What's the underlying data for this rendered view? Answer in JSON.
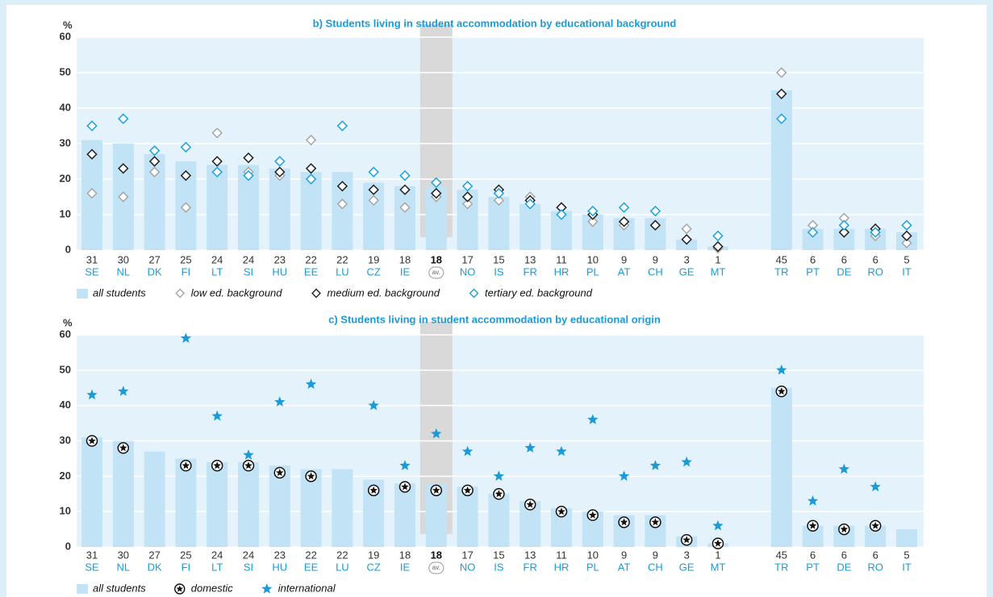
{
  "chart_data": [
    {
      "type": "bar",
      "title": "b) Students living in student accommodation by educational background",
      "y_label": "%",
      "categories": [
        "SE",
        "NL",
        "DK",
        "FI",
        "LT",
        "SI",
        "HU",
        "EE",
        "LU",
        "CZ",
        "IE",
        "av.",
        "NO",
        "IS",
        "FR",
        "HR",
        "PL",
        "AT",
        "CH",
        "GE",
        "MT",
        "TR",
        "PT",
        "DE",
        "RO",
        "IT"
      ],
      "highlight": "av.",
      "ylim": [
        0,
        60
      ],
      "yticks": [
        0,
        10,
        20,
        30,
        40,
        50,
        60
      ],
      "grid": true,
      "series": [
        {
          "name": "all students",
          "color": "#c2e2f5",
          "marker": "bar",
          "values": [
            31,
            30,
            27,
            25,
            24,
            24,
            23,
            22,
            22,
            19,
            18,
            18,
            17,
            15,
            13,
            11,
            10,
            9,
            9,
            3,
            1,
            45,
            6,
            6,
            6,
            5
          ]
        },
        {
          "name": "low ed. background",
          "color": "#a6a6a6",
          "marker": "diamond",
          "values": [
            16,
            15,
            22,
            12,
            33,
            22,
            21,
            31,
            13,
            14,
            12,
            15,
            13,
            14,
            15,
            12,
            8,
            7,
            7,
            6,
            0.5,
            50,
            7,
            9,
            4,
            2
          ]
        },
        {
          "name": "medium ed. background",
          "color": "#222222",
          "marker": "diamond",
          "values": [
            27,
            23,
            25,
            21,
            25,
            26,
            22,
            23,
            18,
            17,
            17,
            16,
            15,
            17,
            14,
            12,
            10,
            8,
            7,
            3,
            1,
            44,
            null,
            5,
            6,
            4
          ]
        },
        {
          "name": "tertiary ed. background",
          "color": "#1aa3dc",
          "marker": "diamond",
          "values": [
            35,
            37,
            28,
            29,
            22,
            21,
            25,
            20,
            35,
            22,
            21,
            19,
            18,
            16,
            13,
            10,
            11,
            12,
            11,
            null,
            4,
            37,
            5,
            7,
            5,
            7
          ]
        }
      ]
    },
    {
      "type": "bar",
      "title": "c) Students living in student accommodation by educational origin",
      "y_label": "%",
      "categories": [
        "SE",
        "NL",
        "DK",
        "FI",
        "LT",
        "SI",
        "HU",
        "EE",
        "LU",
        "CZ",
        "IE",
        "av.",
        "NO",
        "IS",
        "FR",
        "HR",
        "PL",
        "AT",
        "CH",
        "GE",
        "MT",
        "TR",
        "PT",
        "DE",
        "RO",
        "IT"
      ],
      "highlight": "av.",
      "ylim": [
        0,
        60
      ],
      "yticks": [
        0,
        10,
        20,
        30,
        40,
        50,
        60
      ],
      "grid": true,
      "series": [
        {
          "name": "all students",
          "color": "#c2e2f5",
          "marker": "bar",
          "values": [
            31,
            30,
            27,
            25,
            24,
            24,
            23,
            22,
            22,
            19,
            18,
            18,
            17,
            15,
            13,
            11,
            10,
            9,
            9,
            3,
            1,
            45,
            6,
            6,
            6,
            5
          ]
        },
        {
          "name": "domestic",
          "color": "#111111",
          "marker": "circled-star",
          "values": [
            30,
            28,
            null,
            23,
            23,
            23,
            21,
            20,
            null,
            16,
            17,
            16,
            16,
            15,
            12,
            10,
            9,
            7,
            7,
            2,
            1,
            44,
            6,
            5,
            6,
            null
          ]
        },
        {
          "name": "international",
          "color": "#1a9bd7",
          "marker": "star",
          "values": [
            43,
            44,
            null,
            59,
            37,
            26,
            41,
            46,
            null,
            40,
            23,
            32,
            27,
            20,
            28,
            27,
            36,
            20,
            23,
            24,
            6,
            50,
            13,
            22,
            17,
            null
          ]
        }
      ]
    }
  ]
}
